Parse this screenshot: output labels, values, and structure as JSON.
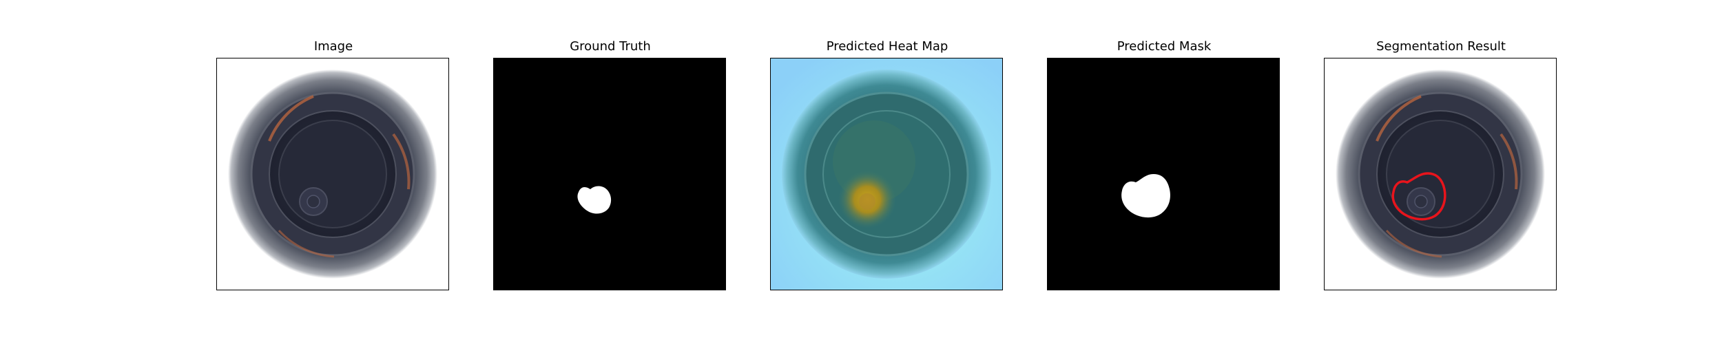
{
  "figure": {
    "panels": [
      {
        "title": "Image"
      },
      {
        "title": "Ground Truth"
      },
      {
        "title": "Predicted Heat Map"
      },
      {
        "title": "Predicted Mask"
      },
      {
        "title": "Segmentation Result"
      }
    ]
  },
  "colors": {
    "frame": "#000000",
    "mask_foreground": "#ffffff",
    "mask_background": "#000000",
    "segmentation_outline": "#e8141c",
    "heatmap_low": "#8fd8ff",
    "heatmap_high": "#c9a21c"
  }
}
